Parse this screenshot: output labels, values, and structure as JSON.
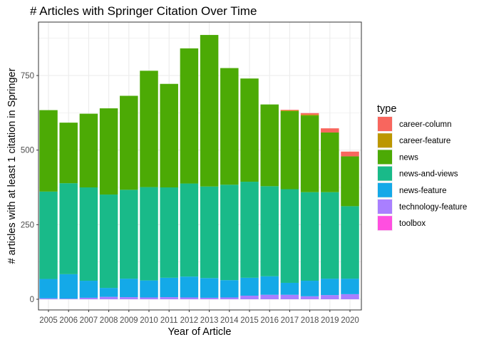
{
  "chart_data": {
    "type": "bar",
    "stacked": true,
    "title": "# Articles with Springer Citation Over Time",
    "xlabel": "Year of Article",
    "ylabel": "# articles with at least 1 citation in Springer",
    "ylim": [
      0,
      925
    ],
    "yticks": [
      0,
      250,
      500,
      750
    ],
    "grid": true,
    "legend": {
      "title": "type",
      "position": "right"
    },
    "categories": [
      "2005",
      "2006",
      "2007",
      "2008",
      "2009",
      "2010",
      "2011",
      "2012",
      "2013",
      "2014",
      "2015",
      "2016",
      "2017",
      "2018",
      "2019",
      "2020"
    ],
    "series": [
      {
        "name": "toolbox",
        "color": "#FF4FE0",
        "values": [
          0,
          0,
          0,
          0,
          0,
          0,
          0,
          0,
          0,
          0,
          0,
          0,
          0,
          0,
          0,
          0
        ]
      },
      {
        "name": "technology-feature",
        "color": "#A97FFF",
        "values": [
          3,
          2,
          5,
          8,
          7,
          6,
          7,
          6,
          5,
          6,
          12,
          15,
          15,
          10,
          14,
          17
        ]
      },
      {
        "name": "news-feature",
        "color": "#14A9E8",
        "values": [
          65,
          82,
          57,
          30,
          62,
          57,
          65,
          70,
          66,
          58,
          60,
          62,
          40,
          52,
          55,
          52
        ]
      },
      {
        "name": "news-and-views",
        "color": "#19BA89",
        "values": [
          293,
          305,
          313,
          313,
          298,
          313,
          303,
          312,
          307,
          320,
          322,
          302,
          314,
          297,
          290,
          243
        ]
      },
      {
        "name": "news",
        "color": "#4CAA05",
        "values": [
          273,
          203,
          247,
          289,
          315,
          390,
          347,
          453,
          508,
          391,
          346,
          274,
          262,
          257,
          200,
          167
        ]
      },
      {
        "name": "career-feature",
        "color": "#BC9700",
        "values": [
          0,
          0,
          0,
          0,
          0,
          0,
          0,
          0,
          0,
          0,
          0,
          0,
          2,
          3,
          0,
          0
        ]
      },
      {
        "name": "career-column",
        "color": "#F8665E",
        "values": [
          0,
          0,
          0,
          0,
          0,
          0,
          0,
          0,
          0,
          0,
          0,
          0,
          2,
          5,
          14,
          16
        ]
      }
    ],
    "legend_order": [
      "career-column",
      "career-feature",
      "news",
      "news-and-views",
      "news-feature",
      "technology-feature",
      "toolbox"
    ]
  }
}
